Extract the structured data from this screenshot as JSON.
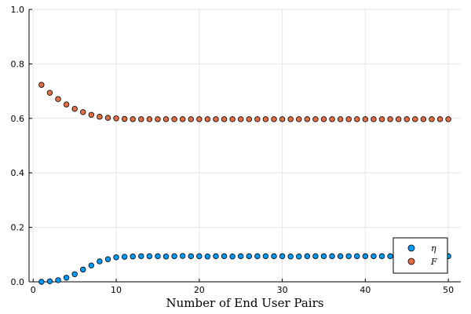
{
  "chart_data": {
    "type": "scatter",
    "title": "",
    "xlabel": "Number of End User Pairs",
    "ylabel": "",
    "xlim": [
      -0.5,
      51.5
    ],
    "ylim": [
      0,
      1.0
    ],
    "xticks": [
      0,
      10,
      20,
      30,
      40,
      50
    ],
    "yticks": [
      0.0,
      0.2,
      0.4,
      0.6,
      0.8,
      1.0
    ],
    "ytick_labels": [
      "0.0",
      "0.2",
      "0.4",
      "0.6",
      "0.8",
      "1.0"
    ],
    "grid": true,
    "legend_position": "bottom-right",
    "x": [
      1,
      2,
      3,
      4,
      5,
      6,
      7,
      8,
      9,
      10,
      11,
      12,
      13,
      14,
      15,
      16,
      17,
      18,
      19,
      20,
      21,
      22,
      23,
      24,
      25,
      26,
      27,
      28,
      29,
      30,
      31,
      32,
      33,
      34,
      35,
      36,
      37,
      38,
      39,
      40,
      41,
      42,
      43,
      44,
      45,
      46,
      47,
      48,
      49,
      50
    ],
    "series": [
      {
        "name": "η",
        "color": "#009af9",
        "values": [
          0.0,
          0.002,
          0.006,
          0.015,
          0.028,
          0.045,
          0.06,
          0.075,
          0.083,
          0.09,
          0.092,
          0.093,
          0.094,
          0.094,
          0.094,
          0.093,
          0.094,
          0.095,
          0.094,
          0.094,
          0.093,
          0.094,
          0.094,
          0.093,
          0.094,
          0.094,
          0.094,
          0.094,
          0.094,
          0.094,
          0.093,
          0.093,
          0.094,
          0.094,
          0.094,
          0.094,
          0.094,
          0.094,
          0.094,
          0.094,
          0.094,
          0.094,
          0.094,
          0.094,
          0.094,
          0.094,
          0.094,
          0.094,
          0.094,
          0.094
        ]
      },
      {
        "name": "F",
        "color": "#e26f46",
        "values": [
          0.723,
          0.694,
          0.671,
          0.651,
          0.635,
          0.623,
          0.613,
          0.606,
          0.602,
          0.6,
          0.598,
          0.597,
          0.597,
          0.597,
          0.597,
          0.597,
          0.597,
          0.597,
          0.597,
          0.597,
          0.597,
          0.597,
          0.597,
          0.597,
          0.597,
          0.597,
          0.597,
          0.597,
          0.597,
          0.597,
          0.597,
          0.597,
          0.597,
          0.597,
          0.597,
          0.597,
          0.597,
          0.597,
          0.597,
          0.597,
          0.597,
          0.597,
          0.597,
          0.597,
          0.597,
          0.597,
          0.597,
          0.597,
          0.597,
          0.597
        ]
      }
    ]
  }
}
